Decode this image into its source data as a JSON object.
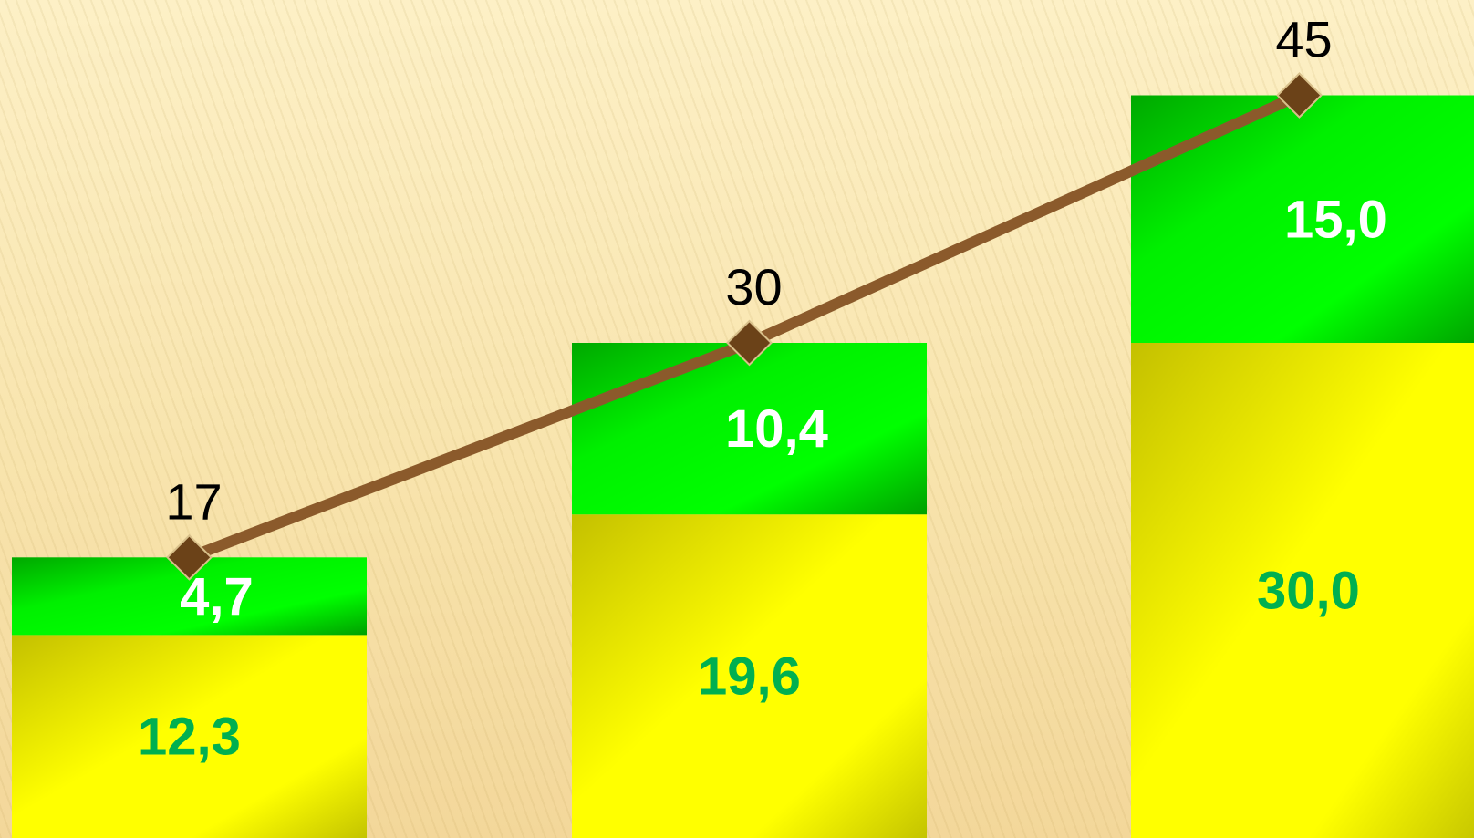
{
  "chart_data": {
    "type": "bar",
    "stacked": true,
    "categories": [
      "",
      "",
      ""
    ],
    "series": [
      {
        "values": [
          12.3,
          19.6,
          30.0
        ],
        "labels": [
          "12,3",
          "19,6",
          "30,0"
        ],
        "color": "#ffff00",
        "label_color": "#00b050"
      },
      {
        "values": [
          4.7,
          10.4,
          15.0
        ],
        "labels": [
          "4,7",
          "10,4",
          "15,0"
        ],
        "color": "#00ff00",
        "label_color": "#ffffff"
      }
    ],
    "line": {
      "values": [
        17,
        30,
        45
      ],
      "labels": [
        "17",
        "30",
        "45"
      ],
      "color": "#8b5a2b",
      "marker": "diamond",
      "marker_color": "#6b4218"
    },
    "grid": false,
    "legend": false
  }
}
